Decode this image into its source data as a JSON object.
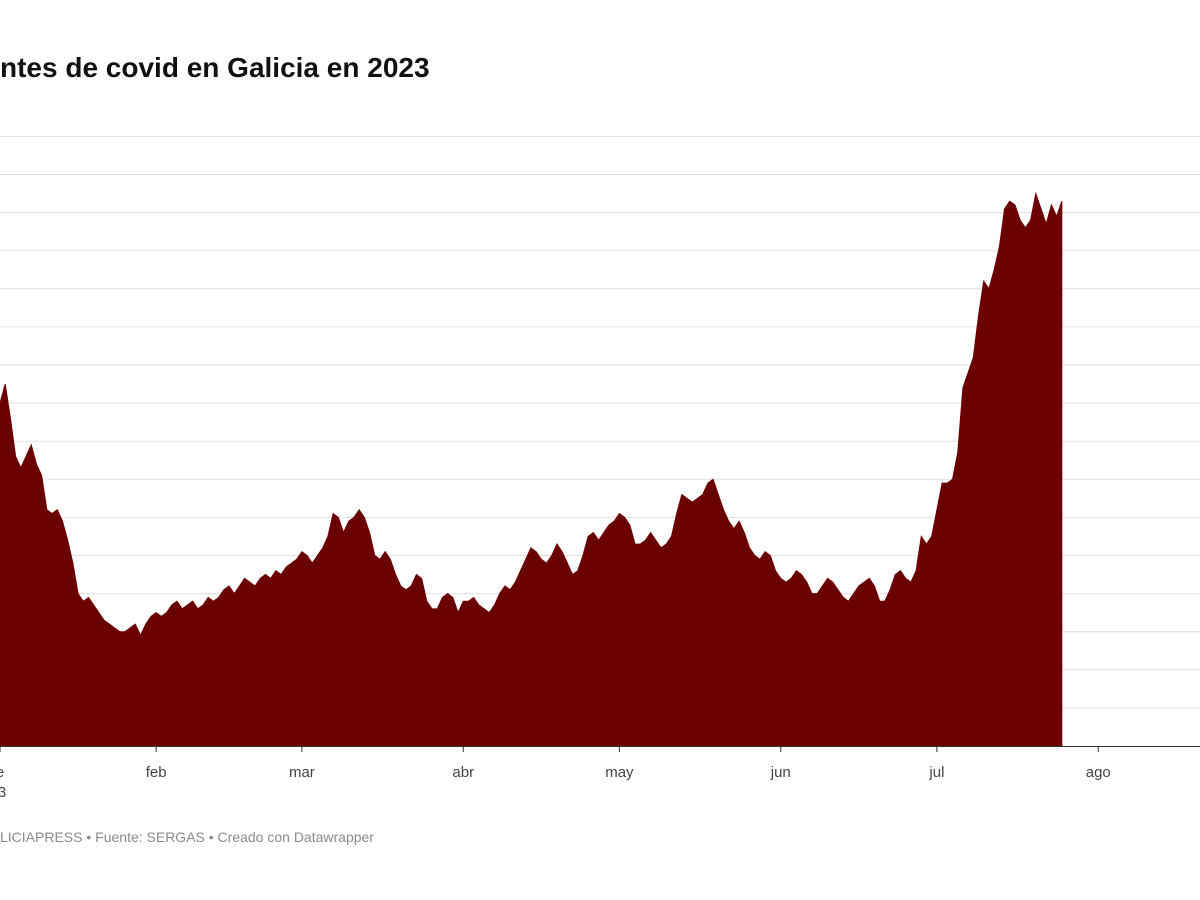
{
  "chart_data": {
    "type": "area",
    "title": "ntes de covid en Galicia en 2023",
    "color": "#6b0000",
    "grid_color": "#e0e0e0",
    "axis_color": "#333333",
    "ylim": [
      0,
      16
    ],
    "gridlines": [
      1,
      2,
      3,
      4,
      5,
      6,
      7,
      8,
      9,
      10,
      11,
      12,
      13,
      14,
      15,
      16
    ],
    "xlim": [
      0,
      232
    ],
    "x_ticks": [
      {
        "day": 0,
        "label": "e",
        "sublabel": "3"
      },
      {
        "day": 30,
        "label": "feb"
      },
      {
        "day": 58,
        "label": "mar"
      },
      {
        "day": 89,
        "label": "abr"
      },
      {
        "day": 119,
        "label": "may"
      },
      {
        "day": 150,
        "label": "jun"
      },
      {
        "day": 180,
        "label": "jul"
      },
      {
        "day": 211,
        "label": "ago"
      }
    ],
    "series": [
      {
        "name": "covid",
        "points": [
          [
            0,
            9.0
          ],
          [
            1,
            9.5
          ],
          [
            2,
            8.6
          ],
          [
            3,
            7.6
          ],
          [
            4,
            7.3
          ],
          [
            5,
            7.6
          ],
          [
            6,
            7.9
          ],
          [
            7,
            7.4
          ],
          [
            8,
            7.1
          ],
          [
            9,
            6.2
          ],
          [
            10,
            6.1
          ],
          [
            11,
            6.2
          ],
          [
            12,
            5.9
          ],
          [
            13,
            5.4
          ],
          [
            14,
            4.8
          ],
          [
            15,
            4.0
          ],
          [
            16,
            3.8
          ],
          [
            17,
            3.9
          ],
          [
            18,
            3.7
          ],
          [
            19,
            3.5
          ],
          [
            20,
            3.3
          ],
          [
            21,
            3.2
          ],
          [
            22,
            3.1
          ],
          [
            23,
            3.0
          ],
          [
            24,
            3.0
          ],
          [
            25,
            3.1
          ],
          [
            26,
            3.2
          ],
          [
            27,
            2.9
          ],
          [
            28,
            3.2
          ],
          [
            29,
            3.4
          ],
          [
            30,
            3.5
          ],
          [
            31,
            3.4
          ],
          [
            32,
            3.5
          ],
          [
            33,
            3.7
          ],
          [
            34,
            3.8
          ],
          [
            35,
            3.6
          ],
          [
            36,
            3.7
          ],
          [
            37,
            3.8
          ],
          [
            38,
            3.6
          ],
          [
            39,
            3.7
          ],
          [
            40,
            3.9
          ],
          [
            41,
            3.8
          ],
          [
            42,
            3.9
          ],
          [
            43,
            4.1
          ],
          [
            44,
            4.2
          ],
          [
            45,
            4.0
          ],
          [
            46,
            4.2
          ],
          [
            47,
            4.4
          ],
          [
            48,
            4.3
          ],
          [
            49,
            4.2
          ],
          [
            50,
            4.4
          ],
          [
            51,
            4.5
          ],
          [
            52,
            4.4
          ],
          [
            53,
            4.6
          ],
          [
            54,
            4.5
          ],
          [
            55,
            4.7
          ],
          [
            56,
            4.8
          ],
          [
            57,
            4.9
          ],
          [
            58,
            5.1
          ],
          [
            59,
            5.0
          ],
          [
            60,
            4.8
          ],
          [
            61,
            5.0
          ],
          [
            62,
            5.2
          ],
          [
            63,
            5.5
          ],
          [
            64,
            6.1
          ],
          [
            65,
            6.0
          ],
          [
            66,
            5.6
          ],
          [
            67,
            5.9
          ],
          [
            68,
            6.0
          ],
          [
            69,
            6.2
          ],
          [
            70,
            6.0
          ],
          [
            71,
            5.6
          ],
          [
            72,
            5.0
          ],
          [
            73,
            4.9
          ],
          [
            74,
            5.1
          ],
          [
            75,
            4.9
          ],
          [
            76,
            4.5
          ],
          [
            77,
            4.2
          ],
          [
            78,
            4.1
          ],
          [
            79,
            4.2
          ],
          [
            80,
            4.5
          ],
          [
            81,
            4.4
          ],
          [
            82,
            3.8
          ],
          [
            83,
            3.6
          ],
          [
            84,
            3.6
          ],
          [
            85,
            3.9
          ],
          [
            86,
            4.0
          ],
          [
            87,
            3.9
          ],
          [
            88,
            3.5
          ],
          [
            89,
            3.8
          ],
          [
            90,
            3.8
          ],
          [
            91,
            3.9
          ],
          [
            92,
            3.7
          ],
          [
            93,
            3.6
          ],
          [
            94,
            3.5
          ],
          [
            95,
            3.7
          ],
          [
            96,
            4.0
          ],
          [
            97,
            4.2
          ],
          [
            98,
            4.1
          ],
          [
            99,
            4.3
          ],
          [
            100,
            4.6
          ],
          [
            101,
            4.9
          ],
          [
            102,
            5.2
          ],
          [
            103,
            5.1
          ],
          [
            104,
            4.9
          ],
          [
            105,
            4.8
          ],
          [
            106,
            5.0
          ],
          [
            107,
            5.3
          ],
          [
            108,
            5.1
          ],
          [
            109,
            4.8
          ],
          [
            110,
            4.5
          ],
          [
            111,
            4.6
          ],
          [
            112,
            5.0
          ],
          [
            113,
            5.5
          ],
          [
            114,
            5.6
          ],
          [
            115,
            5.4
          ],
          [
            116,
            5.6
          ],
          [
            117,
            5.8
          ],
          [
            118,
            5.9
          ],
          [
            119,
            6.1
          ],
          [
            120,
            6.0
          ],
          [
            121,
            5.8
          ],
          [
            122,
            5.3
          ],
          [
            123,
            5.3
          ],
          [
            124,
            5.4
          ],
          [
            125,
            5.6
          ],
          [
            126,
            5.4
          ],
          [
            127,
            5.2
          ],
          [
            128,
            5.3
          ],
          [
            129,
            5.5
          ],
          [
            130,
            6.1
          ],
          [
            131,
            6.6
          ],
          [
            132,
            6.5
          ],
          [
            133,
            6.4
          ],
          [
            134,
            6.5
          ],
          [
            135,
            6.6
          ],
          [
            136,
            6.9
          ],
          [
            137,
            7.0
          ],
          [
            138,
            6.6
          ],
          [
            139,
            6.2
          ],
          [
            140,
            5.9
          ],
          [
            141,
            5.7
          ],
          [
            142,
            5.9
          ],
          [
            143,
            5.6
          ],
          [
            144,
            5.2
          ],
          [
            145,
            5.0
          ],
          [
            146,
            4.9
          ],
          [
            147,
            5.1
          ],
          [
            148,
            5.0
          ],
          [
            149,
            4.6
          ],
          [
            150,
            4.4
          ],
          [
            151,
            4.3
          ],
          [
            152,
            4.4
          ],
          [
            153,
            4.6
          ],
          [
            154,
            4.5
          ],
          [
            155,
            4.3
          ],
          [
            156,
            4.0
          ],
          [
            157,
            4.0
          ],
          [
            158,
            4.2
          ],
          [
            159,
            4.4
          ],
          [
            160,
            4.3
          ],
          [
            161,
            4.1
          ],
          [
            162,
            3.9
          ],
          [
            163,
            3.8
          ],
          [
            164,
            4.0
          ],
          [
            165,
            4.2
          ],
          [
            166,
            4.3
          ],
          [
            167,
            4.4
          ],
          [
            168,
            4.2
          ],
          [
            169,
            3.8
          ],
          [
            170,
            3.8
          ],
          [
            171,
            4.1
          ],
          [
            172,
            4.5
          ],
          [
            173,
            4.6
          ],
          [
            174,
            4.4
          ],
          [
            175,
            4.3
          ],
          [
            176,
            4.6
          ],
          [
            177,
            5.5
          ],
          [
            178,
            5.3
          ],
          [
            179,
            5.5
          ],
          [
            180,
            6.2
          ],
          [
            181,
            6.9
          ],
          [
            182,
            6.9
          ],
          [
            183,
            7.0
          ],
          [
            184,
            7.7
          ],
          [
            185,
            9.4
          ],
          [
            186,
            9.8
          ],
          [
            187,
            10.2
          ],
          [
            188,
            11.3
          ],
          [
            189,
            12.2
          ],
          [
            190,
            12.0
          ],
          [
            191,
            12.5
          ],
          [
            192,
            13.1
          ],
          [
            193,
            14.1
          ],
          [
            194,
            14.3
          ],
          [
            195,
            14.2
          ],
          [
            196,
            13.8
          ],
          [
            197,
            13.6
          ],
          [
            198,
            13.8
          ],
          [
            199,
            14.5
          ],
          [
            200,
            14.1
          ],
          [
            201,
            13.7
          ],
          [
            202,
            14.2
          ],
          [
            203,
            13.9
          ],
          [
            204,
            14.3
          ]
        ]
      }
    ]
  },
  "footer": {
    "text": "LICIAPRESS • Fuente: SERGAS • Creado con Datawrapper"
  }
}
